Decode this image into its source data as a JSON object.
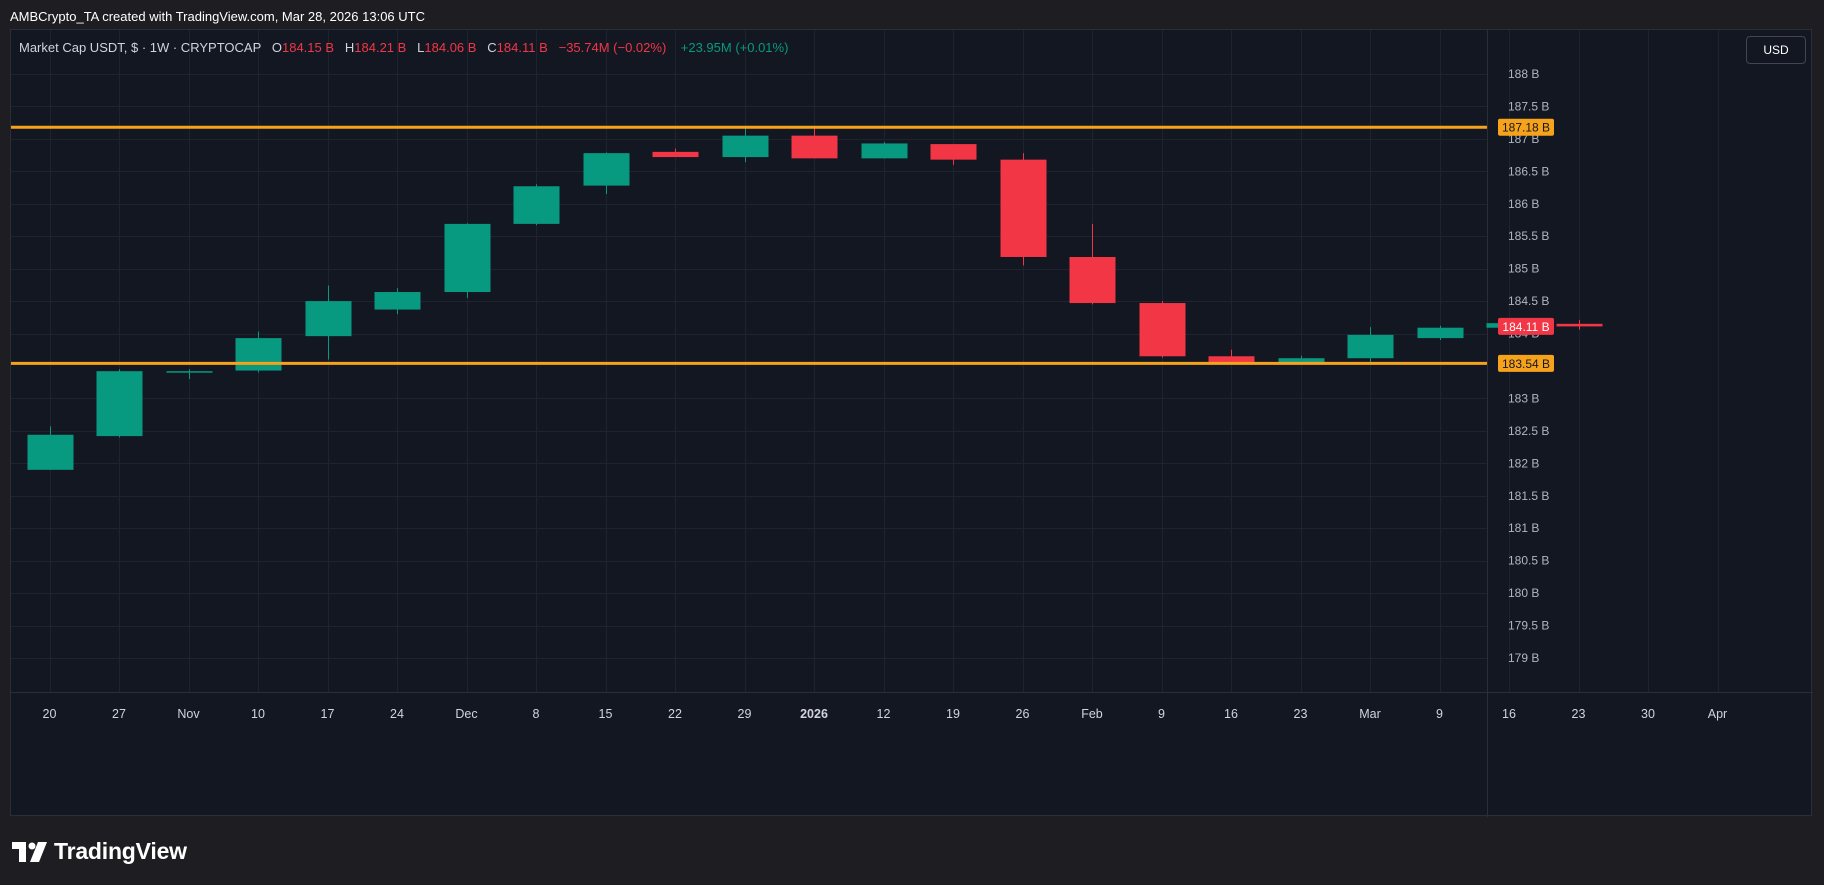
{
  "caption": "AMBCrypto_TA created with TradingView.com, Mar 28, 2026 13:06 UTC",
  "legend": {
    "symbol": "Market Cap USDT, $ · 1W · CRYPTOCAP",
    "o_label": "O",
    "o_value": "184.15 B",
    "h_label": "H",
    "h_value": "184.21 B",
    "l_label": "L",
    "l_value": "184.06 B",
    "c_label": "C",
    "c_value": "184.11 B",
    "change": "−35.74M (−0.02%)",
    "volume_change": "+23.95M (+0.01%)"
  },
  "currency_button": "USD",
  "logo_text": "TradingView",
  "colors": {
    "up": "#089981",
    "down": "#f23645",
    "level": "#f7a21b",
    "background": "#131722",
    "grid": "#1f2330"
  },
  "chart_data": {
    "type": "candlestick",
    "interval": "1W",
    "ylim": [
      178.9,
      188.4
    ],
    "yticks": [
      {
        "value": 188,
        "label": "188 B"
      },
      {
        "value": 187.5,
        "label": "187.5 B"
      },
      {
        "value": 187,
        "label": "187 B"
      },
      {
        "value": 186.5,
        "label": "186.5 B"
      },
      {
        "value": 186,
        "label": "186 B"
      },
      {
        "value": 185.5,
        "label": "185.5 B"
      },
      {
        "value": 185,
        "label": "185 B"
      },
      {
        "value": 184.5,
        "label": "184.5 B"
      },
      {
        "value": 184,
        "label": "184 B"
      },
      {
        "value": 183,
        "label": "183 B"
      },
      {
        "value": 182.5,
        "label": "182.5 B"
      },
      {
        "value": 182,
        "label": "182 B"
      },
      {
        "value": 181.5,
        "label": "181.5 B"
      },
      {
        "value": 181,
        "label": "181 B"
      },
      {
        "value": 180.5,
        "label": "180.5 B"
      },
      {
        "value": 180,
        "label": "180 B"
      },
      {
        "value": 179.5,
        "label": "179.5 B"
      },
      {
        "value": 179,
        "label": "179 B"
      }
    ],
    "xticks": [
      {
        "label": "20",
        "bold": false
      },
      {
        "label": "27",
        "bold": false
      },
      {
        "label": "Nov",
        "bold": false
      },
      {
        "label": "10",
        "bold": false
      },
      {
        "label": "17",
        "bold": false
      },
      {
        "label": "24",
        "bold": false
      },
      {
        "label": "Dec",
        "bold": false
      },
      {
        "label": "8",
        "bold": false
      },
      {
        "label": "15",
        "bold": false
      },
      {
        "label": "22",
        "bold": false
      },
      {
        "label": "29",
        "bold": false
      },
      {
        "label": "2026",
        "bold": true
      },
      {
        "label": "12",
        "bold": false
      },
      {
        "label": "19",
        "bold": false
      },
      {
        "label": "26",
        "bold": false
      },
      {
        "label": "Feb",
        "bold": false
      },
      {
        "label": "9",
        "bold": false
      },
      {
        "label": "16",
        "bold": false
      },
      {
        "label": "23",
        "bold": false
      },
      {
        "label": "Mar",
        "bold": false
      },
      {
        "label": "9",
        "bold": false
      },
      {
        "label": "16",
        "bold": false
      },
      {
        "label": "23",
        "bold": false
      },
      {
        "label": "30",
        "bold": false
      },
      {
        "label": "Apr",
        "bold": false
      }
    ],
    "candles": [
      {
        "o": 181.9,
        "h": 182.57,
        "l": 181.9,
        "c": 182.44
      },
      {
        "o": 182.42,
        "h": 183.45,
        "l": 182.4,
        "c": 183.42
      },
      {
        "o": 183.4,
        "h": 183.45,
        "l": 183.3,
        "c": 183.42
      },
      {
        "o": 183.43,
        "h": 184.03,
        "l": 183.4,
        "c": 183.93
      },
      {
        "o": 183.96,
        "h": 184.74,
        "l": 183.6,
        "c": 184.5
      },
      {
        "o": 184.37,
        "h": 184.7,
        "l": 184.3,
        "c": 184.64
      },
      {
        "o": 184.64,
        "h": 185.7,
        "l": 184.55,
        "c": 185.69
      },
      {
        "o": 185.69,
        "h": 186.3,
        "l": 185.67,
        "c": 186.27
      },
      {
        "o": 186.28,
        "h": 186.79,
        "l": 186.15,
        "c": 186.78
      },
      {
        "o": 186.8,
        "h": 186.85,
        "l": 186.72,
        "c": 186.72
      },
      {
        "o": 186.72,
        "h": 187.2,
        "l": 186.64,
        "c": 187.05
      },
      {
        "o": 187.05,
        "h": 187.18,
        "l": 186.7,
        "c": 186.7
      },
      {
        "o": 186.7,
        "h": 186.95,
        "l": 186.7,
        "c": 186.93
      },
      {
        "o": 186.92,
        "h": 186.92,
        "l": 186.6,
        "c": 186.68
      },
      {
        "o": 186.68,
        "h": 186.78,
        "l": 185.05,
        "c": 185.18
      },
      {
        "o": 185.18,
        "h": 185.69,
        "l": 184.45,
        "c": 184.47
      },
      {
        "o": 184.47,
        "h": 184.5,
        "l": 183.63,
        "c": 183.65
      },
      {
        "o": 183.65,
        "h": 183.75,
        "l": 183.55,
        "c": 183.55
      },
      {
        "o": 183.53,
        "h": 183.66,
        "l": 183.52,
        "c": 183.62
      },
      {
        "o": 183.62,
        "h": 184.1,
        "l": 183.55,
        "c": 183.98
      },
      {
        "o": 183.93,
        "h": 184.12,
        "l": 183.9,
        "c": 184.09
      },
      {
        "o": 184.09,
        "h": 184.22,
        "l": 184.07,
        "c": 184.16
      },
      {
        "o": 184.15,
        "h": 184.21,
        "l": 184.06,
        "c": 184.11
      }
    ],
    "levels": [
      {
        "value": 187.18,
        "label": "187.18 B"
      },
      {
        "value": 183.54,
        "label": "183.54 B"
      }
    ],
    "last_price": {
      "value": 184.11,
      "label": "184.11 B"
    }
  }
}
